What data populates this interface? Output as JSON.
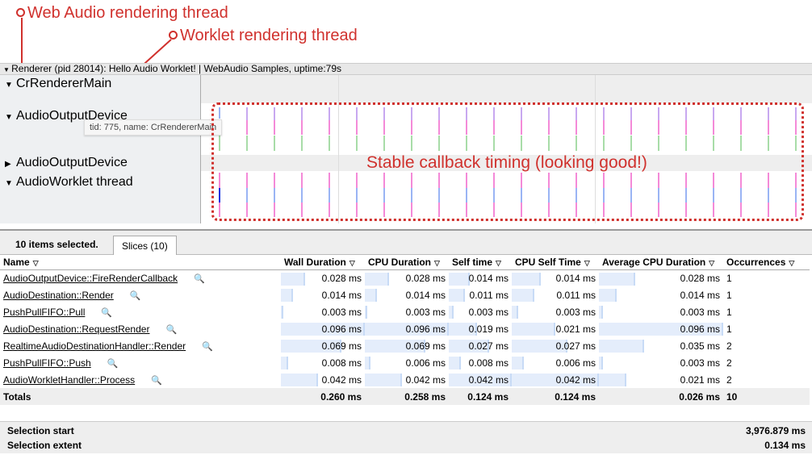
{
  "annotations": {
    "web_audio": "Web Audio rendering thread",
    "worklet": "Worklet rendering thread",
    "callout": "Stable callback timing (looking good!)"
  },
  "process": {
    "label": "Renderer (pid 28014): Hello Audio Worklet! | WebAudio Samples, uptime:79s"
  },
  "threads": [
    {
      "name": "CrRendererMain",
      "expanded": true
    },
    {
      "name": "AudioOutputDevice",
      "expanded": true
    },
    {
      "name": "AudioOutputDevice",
      "expanded": false
    },
    {
      "name": "AudioWorklet thread",
      "expanded": true
    }
  ],
  "tooltip": "tid: 775, name: CrRendererMain",
  "colors": {
    "annotation": "#d0312d",
    "slice_pink": "#f48ad8",
    "slice_green": "#a8dca8",
    "slice_purple": "#c8a8f0",
    "slice_blue": "#9ab4f4",
    "slice_blue_dark": "#1030e0"
  },
  "panel": {
    "selected": "10 items selected.",
    "tab": "Slices (10)"
  },
  "columns": [
    "Name",
    "Wall Duration",
    "CPU Duration",
    "Self time",
    "CPU Self Time",
    "Average CPU Duration",
    "Occurrences"
  ],
  "rows": [
    {
      "name": "AudioOutputDevice::FireRenderCallback",
      "wall": "0.028 ms",
      "cpu": "0.028 ms",
      "self": "0.014 ms",
      "cpuself": "0.014 ms",
      "avg": "0.028 ms",
      "occ": "1"
    },
    {
      "name": "AudioDestination::Render",
      "wall": "0.014 ms",
      "cpu": "0.014 ms",
      "self": "0.011 ms",
      "cpuself": "0.011 ms",
      "avg": "0.014 ms",
      "occ": "1"
    },
    {
      "name": "PushPullFIFO::Pull",
      "wall": "0.003 ms",
      "cpu": "0.003 ms",
      "self": "0.003 ms",
      "cpuself": "0.003 ms",
      "avg": "0.003 ms",
      "occ": "1"
    },
    {
      "name": "AudioDestination::RequestRender",
      "wall": "0.096 ms",
      "cpu": "0.096 ms",
      "self": "0.019 ms",
      "cpuself": "0.021 ms",
      "avg": "0.096 ms",
      "occ": "1"
    },
    {
      "name": "RealtimeAudioDestinationHandler::Render",
      "wall": "0.069 ms",
      "cpu": "0.069 ms",
      "self": "0.027 ms",
      "cpuself": "0.027 ms",
      "avg": "0.035 ms",
      "occ": "2"
    },
    {
      "name": "PushPullFIFO::Push",
      "wall": "0.008 ms",
      "cpu": "0.006 ms",
      "self": "0.008 ms",
      "cpuself": "0.006 ms",
      "avg": "0.003 ms",
      "occ": "2"
    },
    {
      "name": "AudioWorkletHandler::Process",
      "wall": "0.042 ms",
      "cpu": "0.042 ms",
      "self": "0.042 ms",
      "cpuself": "0.042 ms",
      "avg": "0.021 ms",
      "occ": "2"
    }
  ],
  "totals": {
    "label": "Totals",
    "wall": "0.260 ms",
    "cpu": "0.258 ms",
    "self": "0.124 ms",
    "cpuself": "0.124 ms",
    "avg": "0.026 ms",
    "occ": "10"
  },
  "selection": {
    "start_label": "Selection start",
    "start_value": "3,976.879 ms",
    "extent_label": "Selection extent",
    "extent_value": "0.134 ms"
  }
}
